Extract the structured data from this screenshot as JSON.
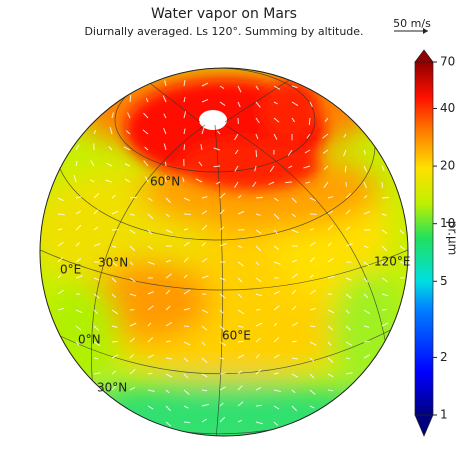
{
  "title": "Water vapor on Mars",
  "subtitle": "Diurnally averaged. Ls 120°. Summing by altitude.",
  "vector_key": "50 m/s",
  "colorbar": {
    "label": "pr.µm",
    "lim": [
      1,
      70
    ],
    "log": true,
    "ticks": [
      1,
      2,
      5,
      10,
      20,
      40,
      70
    ]
  },
  "grid_labels": [
    "60°N",
    "30°N",
    "0°E",
    "0°N",
    "30°N",
    "60°E",
    "120°E"
  ]
}
